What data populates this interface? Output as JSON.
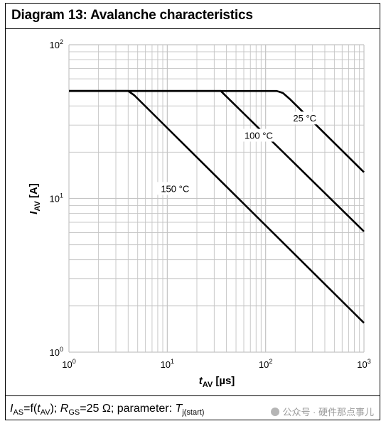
{
  "header": {
    "title": "Diagram 13: Avalanche characteristics"
  },
  "footer": {
    "caption_parts": [
      "I",
      "AS",
      "=f(",
      "t",
      "AV",
      "); ",
      "R",
      "GS",
      "=25 Ω; parameter: ",
      "T",
      "j(start)"
    ],
    "watermark": "公众号 · 硬件那点事儿"
  },
  "chart_data": {
    "type": "line",
    "title": "Diagram 13: Avalanche characteristics",
    "xlabel": "t_AV [µs]",
    "xlabel_main": "t",
    "xlabel_sub": "AV",
    "xlabel_unit": " [µs]",
    "ylabel": "I_AV [A]",
    "ylabel_main": "I",
    "ylabel_sub": "AV",
    "ylabel_unit": " [A]",
    "x_scale": "log",
    "y_scale": "log",
    "xlim": [
      1,
      1000
    ],
    "ylim": [
      1,
      100
    ],
    "x_ticks": [
      {
        "base": "10",
        "exp": "0"
      },
      {
        "base": "10",
        "exp": "1"
      },
      {
        "base": "10",
        "exp": "2"
      },
      {
        "base": "10",
        "exp": "3"
      }
    ],
    "y_ticks": [
      {
        "base": "10",
        "exp": "0"
      },
      {
        "base": "10",
        "exp": "1"
      },
      {
        "base": "10",
        "exp": "2"
      }
    ],
    "grid": true,
    "line_color": "#000000",
    "grid_color": "#c4c4c4",
    "series": [
      {
        "name": "25 °C",
        "label": "25 °C",
        "x": [
          1,
          130,
          150,
          175,
          1000
        ],
        "y": [
          50,
          50,
          48.5,
          44.5,
          14.8
        ],
        "label_at": [
          250,
          33
        ]
      },
      {
        "name": "100 °C",
        "label": "100 °C",
        "x": [
          1,
          35,
          1000
        ],
        "y": [
          50,
          50,
          6.1
        ],
        "label_at": [
          85,
          25.5
        ]
      },
      {
        "name": "150 °C",
        "label": "150 °C",
        "x": [
          1,
          4,
          4.6,
          1000
        ],
        "y": [
          50,
          50,
          47,
          1.55
        ],
        "label_at": [
          12,
          11.5
        ]
      }
    ]
  }
}
